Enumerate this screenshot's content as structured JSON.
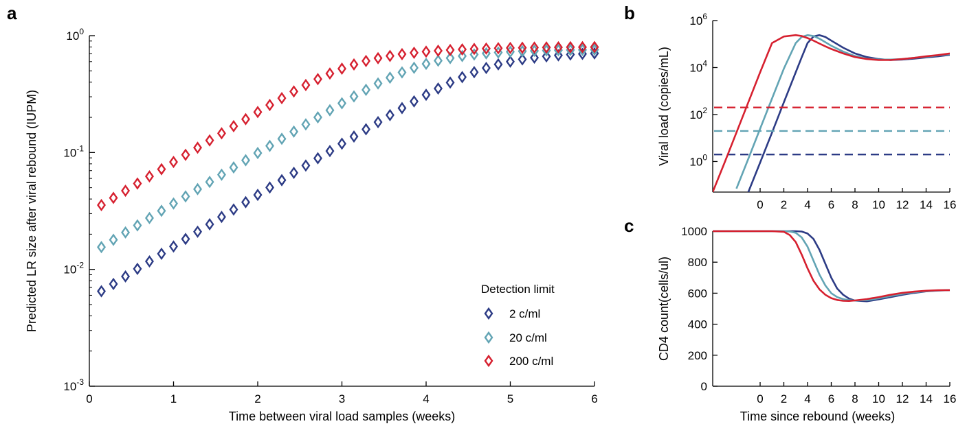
{
  "colors": {
    "c2": "#2c3b85",
    "c20": "#62a4b4",
    "c200": "#d6202f",
    "axis": "#000000"
  },
  "panel_letters": {
    "a": "a",
    "b": "b",
    "c": "c"
  },
  "legend": {
    "title": "Detection limit",
    "items": [
      {
        "label": "2 c/ml",
        "color_key": "c2"
      },
      {
        "label": "20 c/ml",
        "color_key": "c20"
      },
      {
        "label": "200 c/ml",
        "color_key": "c200"
      }
    ]
  },
  "chart_data": [
    {
      "id": "a",
      "type": "scatter",
      "title": "",
      "xlabel": "Time between viral load samples (weeks)",
      "ylabel": "Predicted LR size after viral rebound (IUPM)",
      "xlim": [
        0,
        6
      ],
      "ylim": [
        0.001,
        1
      ],
      "yscale": "log",
      "xticks": [
        "0",
        "1",
        "2",
        "3",
        "4",
        "5",
        "6"
      ],
      "yticks": [
        {
          "base": "10",
          "exp": "0"
        },
        {
          "base": "10",
          "exp": "-1"
        },
        {
          "base": "10",
          "exp": "-2"
        },
        {
          "base": "10",
          "exp": "-3"
        }
      ],
      "marker": "diamond-open",
      "x": [
        0.143,
        0.286,
        0.429,
        0.571,
        0.714,
        0.857,
        1.0,
        1.143,
        1.286,
        1.429,
        1.571,
        1.714,
        1.857,
        2.0,
        2.143,
        2.286,
        2.429,
        2.571,
        2.714,
        2.857,
        3.0,
        3.143,
        3.286,
        3.429,
        3.571,
        3.714,
        3.857,
        4.0,
        4.143,
        4.286,
        4.429,
        4.571,
        4.714,
        4.857,
        5.0,
        5.143,
        5.286,
        5.429,
        5.571,
        5.714,
        5.857,
        6.0
      ],
      "series": [
        {
          "name": "2 c/ml",
          "color_key": "c2",
          "values": [
            0.0065,
            0.0075,
            0.0087,
            0.0101,
            0.0117,
            0.0136,
            0.0157,
            0.0182,
            0.021,
            0.0243,
            0.0281,
            0.0325,
            0.0376,
            0.0434,
            0.0502,
            0.058,
            0.067,
            0.0774,
            0.0893,
            0.103,
            0.119,
            0.137,
            0.158,
            0.182,
            0.209,
            0.24,
            0.274,
            0.312,
            0.353,
            0.397,
            0.442,
            0.487,
            0.529,
            0.568,
            0.6,
            0.627,
            0.648,
            0.665,
            0.679,
            0.69,
            0.698,
            0.705
          ]
        },
        {
          "name": "20 c/ml",
          "color_key": "c20",
          "values": [
            0.0155,
            0.0179,
            0.0207,
            0.0238,
            0.0275,
            0.0317,
            0.0366,
            0.0421,
            0.0486,
            0.056,
            0.0646,
            0.0745,
            0.0859,
            0.099,
            0.114,
            0.131,
            0.151,
            0.174,
            0.2,
            0.23,
            0.264,
            0.302,
            0.344,
            0.39,
            0.437,
            0.485,
            0.531,
            0.574,
            0.611,
            0.643,
            0.669,
            0.69,
            0.706,
            0.718,
            0.728,
            0.736,
            0.742,
            0.747,
            0.751,
            0.754,
            0.756,
            0.758
          ]
        },
        {
          "name": "200 c/ml",
          "color_key": "c200",
          "values": [
            0.0355,
            0.0409,
            0.0471,
            0.0543,
            0.0625,
            0.072,
            0.083,
            0.0956,
            0.11,
            0.127,
            0.146,
            0.168,
            0.193,
            0.222,
            0.255,
            0.292,
            0.333,
            0.378,
            0.425,
            0.474,
            0.522,
            0.567,
            0.607,
            0.642,
            0.671,
            0.695,
            0.714,
            0.73,
            0.743,
            0.754,
            0.763,
            0.77,
            0.776,
            0.781,
            0.785,
            0.788,
            0.791,
            0.793,
            0.795,
            0.797,
            0.798,
            0.799
          ]
        }
      ]
    },
    {
      "id": "b",
      "type": "line",
      "title": "",
      "xlabel": "",
      "ylabel": "Viral load (copies/mL)",
      "xlim": [
        -4,
        16
      ],
      "ylim": [
        0.05,
        1000000
      ],
      "yscale": "log",
      "xticks": [
        "0",
        "2",
        "4",
        "6",
        "8",
        "10",
        "12",
        "14",
        "16"
      ],
      "yticks": [
        {
          "base": "10",
          "exp": "0"
        },
        {
          "base": "10",
          "exp": "2"
        },
        {
          "base": "10",
          "exp": "4"
        },
        {
          "base": "10",
          "exp": "6"
        }
      ],
      "x": [
        -4,
        -3,
        -2,
        -1,
        0,
        1,
        2,
        3,
        3.5,
        4,
        4.5,
        5,
        5.5,
        6,
        7,
        8,
        9,
        10,
        11,
        12,
        13,
        14,
        15,
        16
      ],
      "series": [
        {
          "name": "2 c/ml",
          "color_key": "c2",
          "dashed_level": 2,
          "values": [
            null,
            null,
            null,
            0.05,
            0.9,
            17,
            330,
            6300,
            27000,
            110000,
            210000,
            240000,
            200000,
            140000,
            70000,
            40000,
            28000,
            23000,
            21000,
            22000,
            24000,
            27000,
            30000,
            35000
          ]
        },
        {
          "name": "20 c/ml",
          "color_key": "c20",
          "dashed_level": 20,
          "values": [
            null,
            null,
            0.07,
            1.3,
            25,
            480,
            9000,
            110000,
            200000,
            240000,
            220000,
            170000,
            120000,
            85000,
            48000,
            31000,
            24000,
            22000,
            22000,
            23000,
            26000,
            29000,
            33000,
            37000
          ]
        },
        {
          "name": "200 c/ml",
          "color_key": "c200",
          "dashed_level": 200,
          "values": [
            0.05,
            0.9,
            17,
            330,
            6300,
            110000,
            210000,
            240000,
            220000,
            180000,
            140000,
            105000,
            80000,
            62000,
            40000,
            28000,
            23000,
            21000,
            21000,
            23000,
            26000,
            30000,
            34000,
            40000
          ]
        }
      ]
    },
    {
      "id": "c",
      "type": "line",
      "title": "",
      "xlabel": "Time since rebound (weeks)",
      "ylabel": "CD4 count(cells/ul)",
      "xlim": [
        -4,
        16
      ],
      "ylim": [
        0,
        1000
      ],
      "yscale": "linear",
      "xticks": [
        "0",
        "2",
        "4",
        "6",
        "8",
        "10",
        "12",
        "14",
        "16"
      ],
      "yticks": [
        "0",
        "200",
        "400",
        "600",
        "800",
        "1000"
      ],
      "x": [
        -4,
        -2,
        0,
        1,
        2,
        2.5,
        3,
        3.5,
        4,
        4.5,
        5,
        5.5,
        6,
        6.5,
        7,
        7.5,
        8,
        9,
        10,
        11,
        12,
        13,
        14,
        15,
        16
      ],
      "series": [
        {
          "name": "2 c/ml",
          "color_key": "c2",
          "values": [
            1000,
            1000,
            1000,
            1000,
            1000,
            1000,
            1000,
            998,
            985,
            950,
            880,
            790,
            700,
            630,
            590,
            565,
            552,
            548,
            560,
            575,
            590,
            602,
            612,
            617,
            620
          ]
        },
        {
          "name": "20 c/ml",
          "color_key": "c20",
          "values": [
            1000,
            1000,
            1000,
            1000,
            1000,
            998,
            990,
            960,
            900,
            810,
            720,
            650,
            600,
            575,
            562,
            555,
            552,
            555,
            567,
            582,
            596,
            606,
            613,
            618,
            620
          ]
        },
        {
          "name": "200 c/ml",
          "color_key": "c200",
          "values": [
            1000,
            1000,
            1000,
            1000,
            996,
            975,
            930,
            850,
            760,
            680,
            625,
            590,
            568,
            556,
            551,
            550,
            553,
            562,
            575,
            590,
            602,
            610,
            616,
            619,
            620
          ]
        }
      ]
    }
  ]
}
